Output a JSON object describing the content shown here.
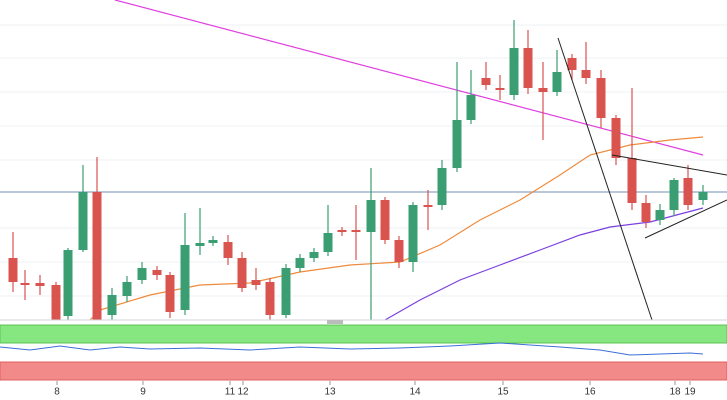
{
  "chart_data": {
    "type": "candlestick",
    "x": [
      13,
      25,
      40,
      56,
      68,
      83,
      97,
      112,
      127,
      142,
      157,
      170,
      185,
      200,
      213,
      228,
      242,
      256,
      270,
      286,
      300,
      314,
      328,
      342,
      356,
      371,
      385,
      399,
      413,
      428,
      442,
      457,
      471,
      486,
      500,
      514,
      528,
      543,
      557,
      572,
      586,
      601,
      616,
      632,
      646,
      660,
      674,
      688,
      703
    ],
    "open": [
      62,
      37,
      37,
      35,
      4,
      70,
      128,
      5,
      24,
      40,
      50,
      45,
      10,
      74,
      77,
      78,
      62,
      40,
      38,
      5,
      52,
      62,
      68,
      90,
      90,
      88,
      120,
      80,
      58,
      115,
      115,
      152,
      200,
      242,
      232,
      225,
      272,
      232,
      228,
      262,
      250,
      242,
      202,
      162,
      117,
      100,
      110,
      142,
      120
    ],
    "high": [
      88,
      50,
      45,
      38,
      72,
      155,
      163,
      32,
      44,
      58,
      54,
      48,
      107,
      112,
      84,
      85,
      68,
      52,
      42,
      56,
      66,
      72,
      115,
      93,
      115,
      152,
      123,
      84,
      118,
      130,
      160,
      258,
      250,
      258,
      245,
      300,
      290,
      258,
      270,
      266,
      278,
      250,
      205,
      232,
      125,
      116,
      142,
      155,
      135
    ],
    "low": [
      28,
      20,
      25,
      0,
      0,
      68,
      0,
      0,
      18,
      36,
      40,
      2,
      5,
      65,
      74,
      55,
      28,
      30,
      0,
      2,
      48,
      58,
      64,
      84,
      60,
      0,
      76,
      52,
      48,
      90,
      110,
      148,
      196,
      230,
      220,
      220,
      226,
      180,
      224,
      240,
      236,
      192,
      155,
      110,
      92,
      95,
      104,
      110,
      115
    ],
    "close": [
      38,
      35,
      34,
      0,
      70,
      128,
      0,
      25,
      38,
      52,
      45,
      8,
      75,
      77,
      80,
      62,
      32,
      35,
      5,
      52,
      62,
      68,
      87,
      88,
      88,
      120,
      80,
      58,
      115,
      113,
      152,
      200,
      225,
      235,
      230,
      272,
      232,
      228,
      248,
      250,
      242,
      202,
      162,
      117,
      98,
      110,
      140,
      115,
      128
    ],
    "xlim": [
      0,
      727
    ],
    "ylim": [
      0,
      320
    ],
    "xticks": [
      {
        "value": 57,
        "label": "8"
      },
      {
        "value": 143,
        "label": "9"
      },
      {
        "value": 230,
        "label": "11"
      },
      {
        "value": 243,
        "label": "12"
      },
      {
        "value": 330,
        "label": "13"
      },
      {
        "value": 415,
        "label": "14"
      },
      {
        "value": 503,
        "label": "15"
      },
      {
        "value": 590,
        "label": "16"
      },
      {
        "value": 675,
        "label": "18"
      },
      {
        "value": 690,
        "label": "19"
      }
    ],
    "up_color": "#3b9e72",
    "down_color": "#d9534f"
  }
}
